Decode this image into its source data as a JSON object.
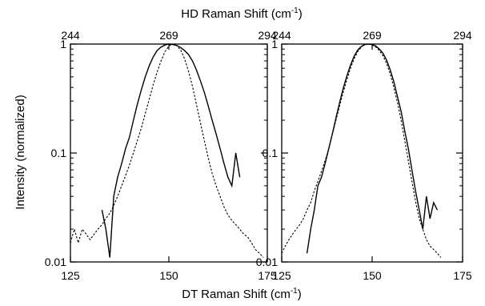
{
  "chart_data": {
    "type": "line",
    "top_axis_label": "HD Raman Shift (cm",
    "top_axis_label_exp": "-1",
    "top_axis_label_tail": ")",
    "bottom_axis_label": "DT Raman Shift (cm",
    "bottom_axis_label_exp": "-1",
    "bottom_axis_label_tail": ")",
    "ylabel": "Intensity (normalized)",
    "yscale": "log",
    "ylim": [
      0.01,
      1
    ],
    "y_ticks": [
      "0.01",
      "0.1",
      "1"
    ],
    "y_tick_values": [
      0.01,
      0.1,
      1
    ],
    "panels": [
      {
        "xlim": [
          125,
          175
        ],
        "bottom_ticks": [
          "125",
          "150",
          "175"
        ],
        "bottom_tick_values": [
          125,
          150,
          175
        ],
        "top_ticks": [
          "244",
          "269",
          "294"
        ],
        "top_tick_values": [
          125,
          150,
          175
        ],
        "series": [
          {
            "style": "solid",
            "x": [
              133.0,
              134.0,
              135.0,
              136.0,
              137.0,
              138.0,
              139.0,
              140.0,
              141.0,
              142.0,
              143.0,
              144.0,
              145.0,
              146.0,
              147.0,
              148.0,
              149.0,
              150.0,
              151.0,
              152.0,
              153.0,
              154.0,
              155.0,
              156.0,
              157.0,
              158.0,
              159.0,
              160.0,
              161.0,
              162.0,
              163.0,
              164.0,
              165.0,
              166.0,
              167.0,
              168.0
            ],
            "y": [
              0.03,
              0.02,
              0.011,
              0.04,
              0.06,
              0.08,
              0.11,
              0.14,
              0.2,
              0.28,
              0.38,
              0.5,
              0.63,
              0.76,
              0.87,
              0.94,
              0.98,
              1.0,
              0.99,
              0.97,
              0.93,
              0.87,
              0.8,
              0.7,
              0.58,
              0.46,
              0.36,
              0.27,
              0.2,
              0.15,
              0.11,
              0.08,
              0.06,
              0.05,
              0.1,
              0.06
            ]
          },
          {
            "style": "dashed",
            "x": [
              125.0,
              126.0,
              127.0,
              128.0,
              129.0,
              130.0,
              131.0,
              132.0,
              133.0,
              134.0,
              135.0,
              136.0,
              137.0,
              138.0,
              139.0,
              140.0,
              141.0,
              142.0,
              143.0,
              144.0,
              145.0,
              146.0,
              147.0,
              148.0,
              149.0,
              150.0,
              151.0,
              152.0,
              153.0,
              154.0,
              155.0,
              156.0,
              157.0,
              158.0,
              159.0,
              160.0,
              161.0,
              162.0,
              163.0,
              164.0,
              165.0,
              166.0,
              167.0,
              168.0,
              169.0,
              170.0,
              171.0,
              172.0,
              173.0,
              174.0
            ],
            "y": [
              0.015,
              0.02,
              0.015,
              0.02,
              0.018,
              0.016,
              0.018,
              0.02,
              0.022,
              0.025,
              0.028,
              0.033,
              0.04,
              0.05,
              0.062,
              0.078,
              0.1,
              0.13,
              0.17,
              0.23,
              0.31,
              0.42,
              0.55,
              0.7,
              0.85,
              0.96,
              1.0,
              0.97,
              0.88,
              0.73,
              0.56,
              0.41,
              0.28,
              0.19,
              0.13,
              0.09,
              0.065,
              0.05,
              0.04,
              0.032,
              0.027,
              0.024,
              0.022,
              0.02,
              0.018,
              0.017,
              0.015,
              0.013,
              0.012,
              0.011
            ]
          }
        ]
      },
      {
        "xlim": [
          125,
          175
        ],
        "bottom_ticks": [
          "125",
          "150",
          "175"
        ],
        "bottom_tick_values": [
          125,
          150,
          175
        ],
        "top_ticks": [
          "244",
          "269",
          "294"
        ],
        "top_tick_values": [
          125,
          150,
          175
        ],
        "series": [
          {
            "style": "solid",
            "x": [
              132.0,
              133.0,
              134.0,
              135.0,
              136.0,
              137.0,
              138.0,
              139.0,
              140.0,
              141.0,
              142.0,
              143.0,
              144.0,
              145.0,
              146.0,
              147.0,
              148.0,
              149.0,
              150.0,
              151.0,
              152.0,
              153.0,
              154.0,
              155.0,
              156.0,
              157.0,
              158.0,
              159.0,
              160.0,
              161.0,
              162.0,
              163.0,
              164.0,
              165.0,
              166.0,
              167.0,
              168.0
            ],
            "y": [
              0.012,
              0.02,
              0.03,
              0.05,
              0.06,
              0.08,
              0.11,
              0.15,
              0.21,
              0.29,
              0.39,
              0.51,
              0.64,
              0.77,
              0.88,
              0.95,
              0.99,
              1.0,
              0.99,
              0.96,
              0.9,
              0.82,
              0.71,
              0.58,
              0.45,
              0.33,
              0.24,
              0.16,
              0.11,
              0.07,
              0.045,
              0.03,
              0.02,
              0.04,
              0.025,
              0.035,
              0.03
            ]
          },
          {
            "style": "dashed",
            "x": [
              125.0,
              126.0,
              127.0,
              128.0,
              129.0,
              130.0,
              131.0,
              132.0,
              133.0,
              134.0,
              135.0,
              136.0,
              137.0,
              138.0,
              139.0,
              140.0,
              141.0,
              142.0,
              143.0,
              144.0,
              145.0,
              146.0,
              147.0,
              148.0,
              149.0,
              150.0,
              151.0,
              152.0,
              153.0,
              154.0,
              155.0,
              156.0,
              157.0,
              158.0,
              159.0,
              160.0,
              161.0,
              162.0,
              163.0,
              164.0,
              165.0,
              166.0,
              167.0,
              168.0,
              169.0
            ],
            "y": [
              0.012,
              0.014,
              0.016,
              0.018,
              0.02,
              0.022,
              0.025,
              0.03,
              0.035,
              0.045,
              0.055,
              0.068,
              0.085,
              0.11,
              0.15,
              0.2,
              0.27,
              0.36,
              0.47,
              0.6,
              0.73,
              0.85,
              0.94,
              0.99,
              1.0,
              0.98,
              0.94,
              0.87,
              0.78,
              0.66,
              0.53,
              0.4,
              0.29,
              0.2,
              0.13,
              0.085,
              0.055,
              0.036,
              0.025,
              0.02,
              0.016,
              0.014,
              0.013,
              0.012,
              0.011
            ]
          }
        ]
      }
    ]
  }
}
